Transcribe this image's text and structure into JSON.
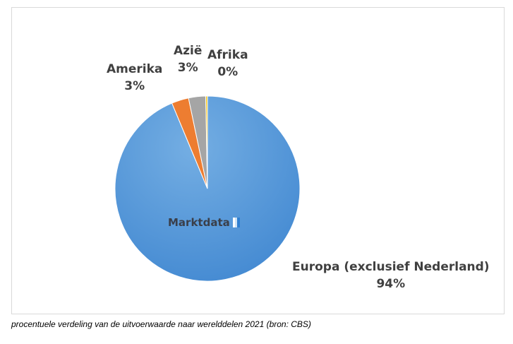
{
  "chart_data": {
    "type": "pie",
    "title": "",
    "slices": [
      {
        "label": "Europa (exclusief Nederland)",
        "value": 94,
        "value_label": "94%",
        "color": "#5b9bd5"
      },
      {
        "label": "Amerika",
        "value": 3,
        "value_label": "3%",
        "color": "#ed7d31"
      },
      {
        "label": "Azië",
        "value": 3,
        "value_label": "3%",
        "color": "#a5a5a5"
      },
      {
        "label": "Afrika",
        "value": 0.3,
        "value_label": "0%",
        "color": "#ffc000"
      }
    ],
    "legend": "none"
  },
  "watermark": {
    "text": "Marktdata"
  },
  "caption": "procentuele verdeling van de uitvoerwaarde naar werelddelen 2021 (bron: CBS)"
}
